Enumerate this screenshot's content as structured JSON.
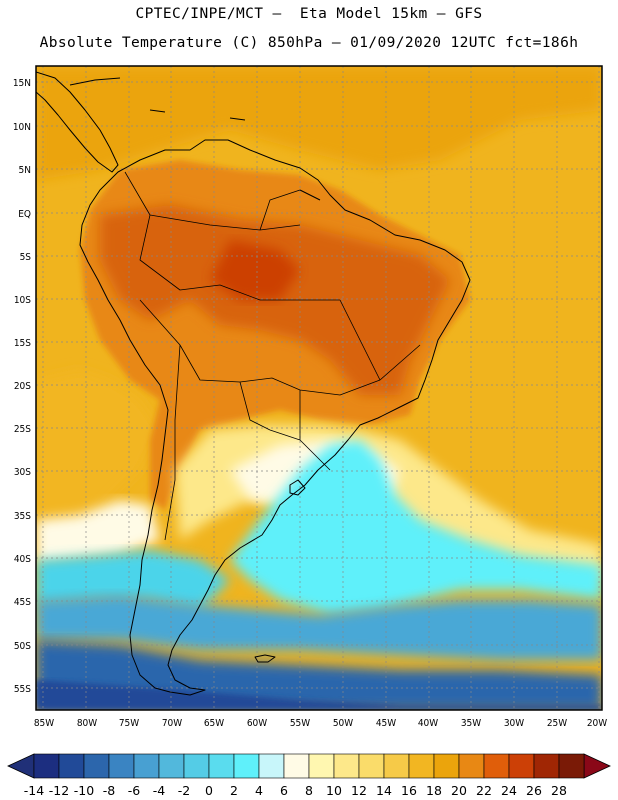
{
  "title": {
    "line1": "CPTEC/INPE/MCT –  Eta Model 15km – GFS",
    "line2": "Absolute Temperature (C) 850hPa – 01/09/2020 12UTC fct=186h"
  },
  "map": {
    "lat_labels": [
      "15N",
      "10N",
      "5N",
      "EQ",
      "5S",
      "10S",
      "15S",
      "20S",
      "25S",
      "30S",
      "35S",
      "40S",
      "45S",
      "50S",
      "55S"
    ],
    "lon_labels": [
      "85W",
      "80W",
      "75W",
      "70W",
      "65W",
      "60W",
      "55W",
      "50W",
      "45W",
      "40W",
      "35W",
      "30W",
      "25W",
      "20W"
    ],
    "colors": {
      "ocean_warm": "#f0b41e",
      "ocean_tropic": "#eba40c",
      "land_hot": "#d8640a",
      "land_warm": "#e88814",
      "cool_yellow": "#fdf29a",
      "pale": "#fffbe6",
      "cyan": "#5ff0fa",
      "cyan_mid": "#4cd4ea",
      "blue_mid": "#48a8d6",
      "blue_dark": "#2c66ac"
    }
  },
  "colorbar": {
    "ticks": [
      "-14",
      "-12",
      "-10",
      "-8",
      "-6",
      "-4",
      "-2",
      "0",
      "2",
      "4",
      "6",
      "8",
      "10",
      "12",
      "14",
      "16",
      "18",
      "20",
      "22",
      "24",
      "26",
      "28"
    ],
    "colors": [
      "#1c2e80",
      "#214a98",
      "#2c66ac",
      "#3a84c2",
      "#48a0d2",
      "#52b8dc",
      "#54cce6",
      "#5adcee",
      "#5ff0fa",
      "#c8f6fa",
      "#fffbe6",
      "#fff7b0",
      "#fde88a",
      "#fadc6a",
      "#f6ca48",
      "#f2b622",
      "#eba40c",
      "#e88814",
      "#e05e0a",
      "#cc4006",
      "#a02604",
      "#7a1a06"
    ],
    "under_color": "#203078",
    "over_color": "#8a0818"
  }
}
